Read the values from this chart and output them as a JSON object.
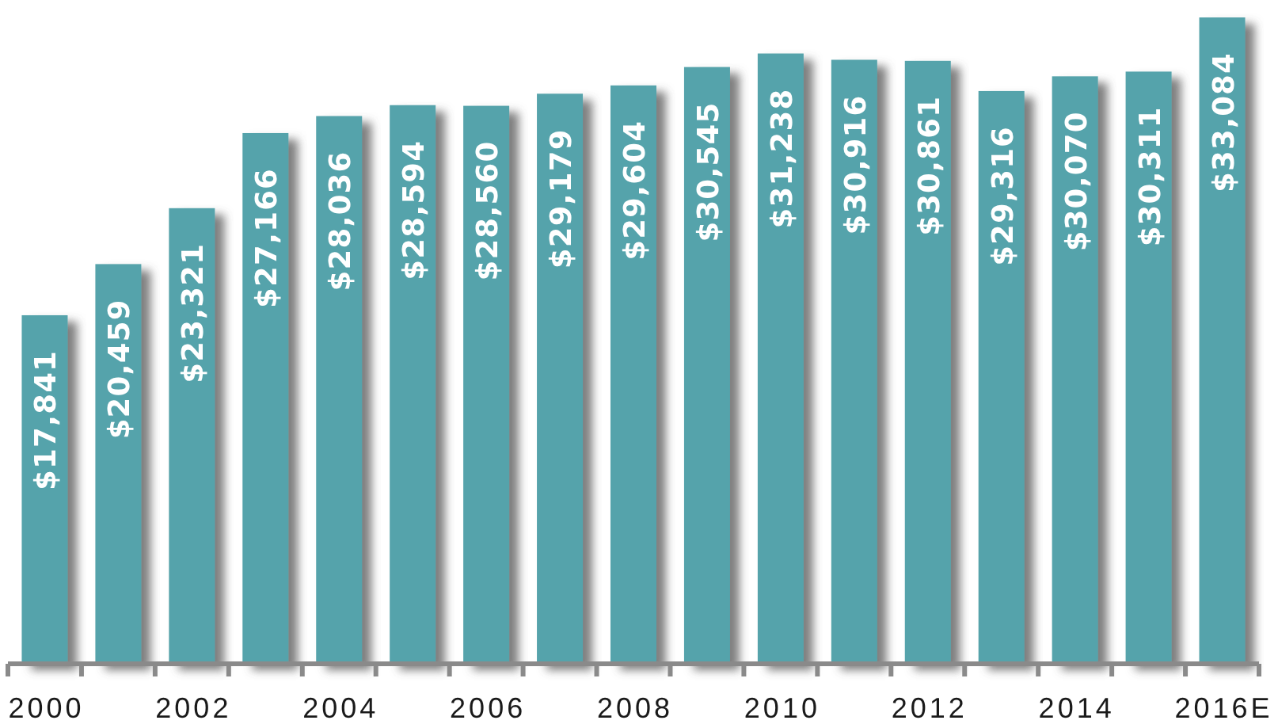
{
  "chart_data": {
    "type": "bar",
    "categories": [
      "2000",
      null,
      "2002",
      null,
      "2004",
      null,
      "2006",
      null,
      "2008",
      null,
      "2010",
      null,
      "2012",
      null,
      "2014",
      null,
      "2016E"
    ],
    "values": [
      17841,
      20459,
      23321,
      27166,
      28036,
      28594,
      28560,
      29179,
      29604,
      30545,
      31238,
      30916,
      30861,
      29316,
      30070,
      30311,
      33084
    ],
    "value_labels": [
      "$17,841",
      "$20,459",
      "$23,321",
      "$27,166",
      "$28,036",
      "$28,594",
      "$28,560",
      "$29,179",
      "$29,604",
      "$30,545",
      "$31,238",
      "$30,916",
      "$30,861",
      "$29,316",
      "$30,070",
      "$30,311",
      "$33,084"
    ],
    "color": "#55a3ab"
  }
}
